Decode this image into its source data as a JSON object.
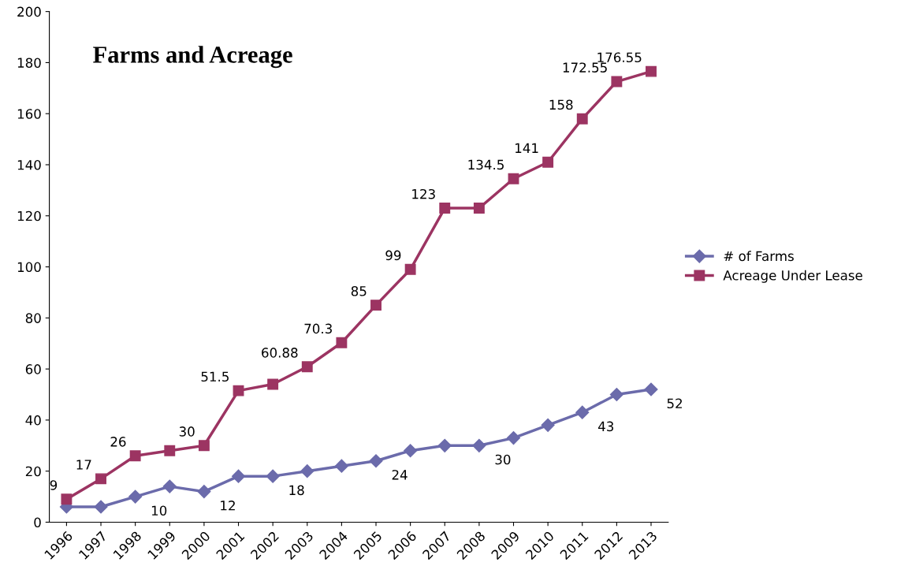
{
  "chart_data": {
    "type": "line",
    "title": "Farms and Acreage",
    "categories": [
      "1996",
      "1997",
      "1998",
      "1999",
      "2000",
      "2001",
      "2002",
      "2003",
      "2004",
      "2005",
      "2006",
      "2007",
      "2008",
      "2009",
      "2010",
      "2011",
      "2012",
      "2013"
    ],
    "series": [
      {
        "name": "# of Farms",
        "color": "#6b6bab",
        "marker": "diamond",
        "values": [
          6,
          6,
          10,
          14,
          12,
          18,
          18,
          20,
          22,
          24,
          28,
          30,
          30,
          33,
          38,
          43,
          50,
          52
        ],
        "value_labels": [
          null,
          null,
          "10",
          null,
          "12",
          null,
          "18",
          null,
          null,
          "24",
          null,
          null,
          "30",
          null,
          null,
          "43",
          null,
          "52"
        ]
      },
      {
        "name": "Acreage Under Lease",
        "color": "#9c3462",
        "marker": "square",
        "values": [
          9,
          17,
          26,
          28,
          30,
          51.5,
          54,
          60.88,
          70.3,
          85,
          99,
          123,
          123,
          134.5,
          141,
          158,
          172.55,
          176.55
        ],
        "value_labels": [
          "9",
          "17",
          "26",
          null,
          "30",
          "51.5",
          null,
          "60.88",
          "70.3",
          "85",
          "99",
          "123",
          null,
          "134.5",
          "141",
          "158",
          "172.55",
          "176.55"
        ]
      }
    ],
    "ylim": [
      0,
      200
    ],
    "yticks": [
      0,
      20,
      40,
      60,
      80,
      100,
      120,
      140,
      160,
      180,
      200
    ],
    "grid": false,
    "legend": "right",
    "line_style": "solid"
  }
}
